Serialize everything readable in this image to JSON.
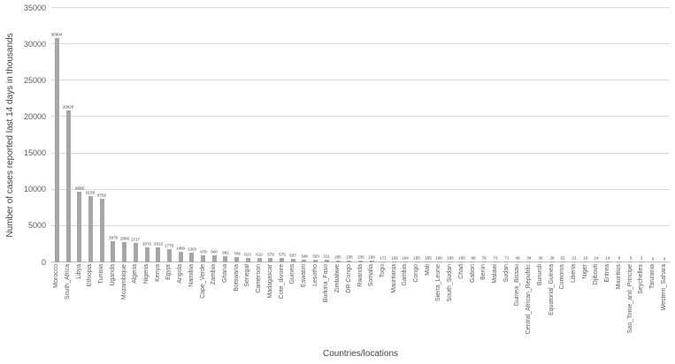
{
  "chart_data": {
    "type": "bar",
    "title": "",
    "xlabel": "Countries/locations",
    "ylabel": "Number of cases reported last 14 days in thousands",
    "ylim": [
      0,
      35000
    ],
    "yticks": [
      0,
      5000,
      10000,
      15000,
      20000,
      25000,
      30000,
      35000
    ],
    "grid": true,
    "legend": "none",
    "bar_color": "#a6a6a6",
    "gridline_color": "#d9d9d9",
    "data_labels": true,
    "categories": [
      "Morocco",
      "South_Africa",
      "Libya",
      "Ethiopia",
      "Tunisia",
      "Uganda",
      "Mozambique",
      "Algeria",
      "Nigeria",
      "Kenya",
      "Egypt",
      "Angola",
      "Namibia",
      "Cape_Verde",
      "Zambia",
      "Ghana",
      "Botswana",
      "Senegal",
      "Cameroon",
      "Madagascar",
      "Cote_divoire",
      "Guinea",
      "Eswatini",
      "Lesotho",
      "Burkina_Faso",
      "Zimbabwe",
      "DR Congo",
      "Rwanda",
      "Somalia",
      "Togo",
      "Mauritania",
      "Gambia",
      "Congo",
      "Mali",
      "Sierra_Leone",
      "South_Sudan",
      "Chad",
      "Gabon",
      "Benin",
      "Malawi",
      "Sudan",
      "Guinea_Bissau",
      "Central_African_Republic",
      "Burundi",
      "Equatorial_Guinea",
      "Comoros",
      "Liberia",
      "Niger",
      "Djibouti",
      "Eritrea",
      "Mauritius",
      "Sao_Tome_and_Principe",
      "Seychelles",
      "Tanzania",
      "Western_Sahara"
    ],
    "values": [
      30904,
      20920,
      9698,
      9158,
      8792,
      2978,
      2806,
      2717,
      2072,
      2013,
      1778,
      1489,
      1303,
      978,
      940,
      881,
      709,
      613,
      610,
      579,
      575,
      537,
      348,
      320,
      311,
      285,
      235,
      230,
      199,
      171,
      169,
      164,
      155,
      155,
      106,
      105,
      100,
      98,
      79,
      73,
      71,
      49,
      34,
      30,
      28,
      22,
      21,
      16,
      14,
      14,
      6,
      5,
      3,
      0,
      0
    ]
  }
}
